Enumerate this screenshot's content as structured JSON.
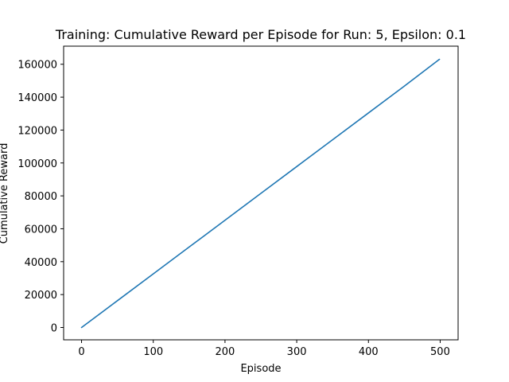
{
  "chart_data": {
    "type": "line",
    "title": "Training: Cumulative Reward per Episode for Run: 5, Epsilon: 0.1",
    "xlabel": "Episode",
    "ylabel": "Cumulative Reward",
    "xlim": [
      -25,
      525
    ],
    "ylim": [
      -7500,
      171000
    ],
    "xticks": [
      0,
      100,
      200,
      300,
      400,
      500
    ],
    "yticks": [
      0,
      20000,
      40000,
      60000,
      80000,
      100000,
      120000,
      140000,
      160000
    ],
    "grid": false,
    "line_color": "#1f77b4",
    "series": [
      {
        "x": [
          0,
          50,
          100,
          150,
          200,
          250,
          300,
          350,
          400,
          450,
          499
        ],
        "y": [
          0,
          16300,
          32600,
          48900,
          65200,
          81500,
          97800,
          114100,
          130400,
          146700,
          163000
        ]
      }
    ]
  }
}
